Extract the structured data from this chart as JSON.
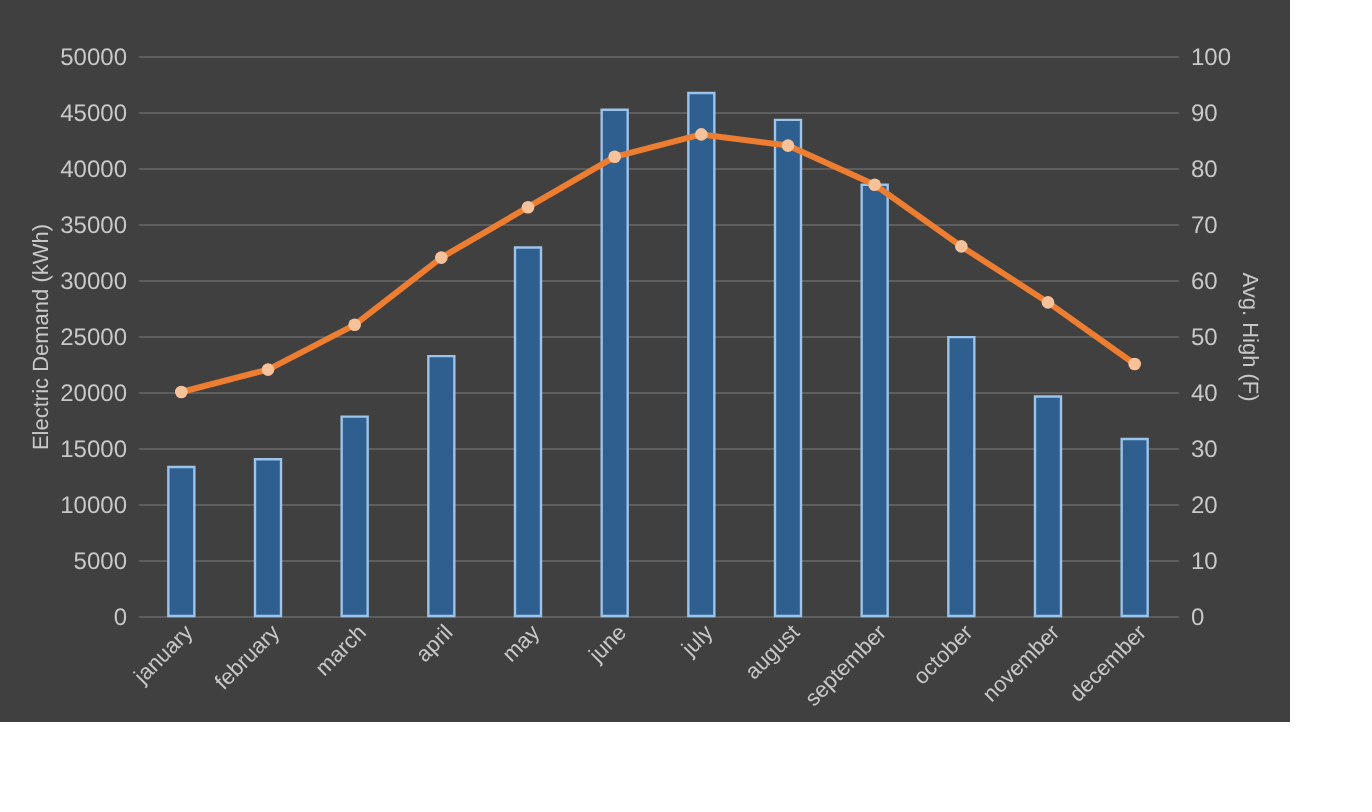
{
  "chart_data": {
    "type": "bar",
    "categories": [
      "january",
      "february",
      "march",
      "april",
      "may",
      "june",
      "july",
      "august",
      "september",
      "october",
      "november",
      "december"
    ],
    "xlabel": null,
    "ylabel": "Electric Demand (kWh)",
    "y2label": "Avg. High (F)",
    "series": [
      {
        "color": "#2e5f8f",
        "values": [
          13300,
          14000,
          17800,
          23200,
          32900,
          45200,
          46700,
          44300,
          38500,
          24900,
          19600,
          15800
        ]
      },
      {
        "type": "line",
        "axis": "y2",
        "color": "#ed7d31",
        "marker": "circle",
        "values": [
          40,
          44,
          52,
          64,
          73,
          82,
          86,
          84,
          77,
          66,
          56,
          45
        ]
      }
    ],
    "ylim": [
      0,
      50000
    ],
    "yticks": [
      0,
      5000,
      10000,
      15000,
      20000,
      25000,
      30000,
      35000,
      40000,
      45000,
      50000
    ],
    "y2lim": [
      0,
      100
    ],
    "y2ticks": [
      0,
      10,
      20,
      30,
      40,
      50,
      60,
      70,
      80,
      90,
      100
    ],
    "grid": "y"
  }
}
